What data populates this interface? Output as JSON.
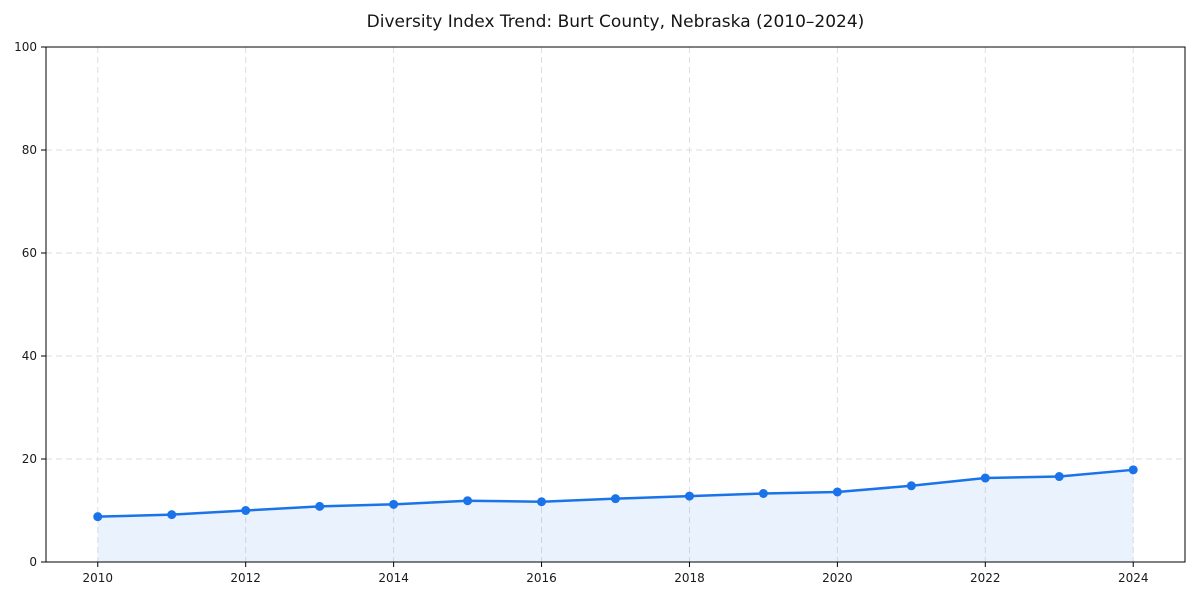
{
  "chart_data": {
    "type": "line",
    "title": "Diversity Index Trend: Burt County, Nebraska (2010–2024)",
    "xlabel": "",
    "ylabel": "",
    "x": [
      2010,
      2011,
      2012,
      2013,
      2014,
      2015,
      2016,
      2017,
      2018,
      2019,
      2020,
      2021,
      2022,
      2023,
      2024
    ],
    "series": [
      {
        "name": "Diversity Index",
        "values": [
          8.8,
          9.2,
          10.0,
          10.8,
          11.2,
          11.9,
          11.7,
          12.3,
          12.8,
          13.3,
          13.6,
          14.8,
          16.3,
          16.6,
          17.9
        ]
      }
    ],
    "xlim": [
      2009.3,
      2024.7
    ],
    "ylim": [
      0,
      100
    ],
    "x_ticks": [
      2010,
      2012,
      2014,
      2016,
      2018,
      2020,
      2022,
      2024
    ],
    "y_ticks": [
      0,
      20,
      40,
      60,
      80,
      100
    ],
    "grid": "dashed",
    "legend_position": "none",
    "line_color": "#1a73e8",
    "fill_opacity": 0.09,
    "grid_color": "#dedede",
    "axis_color": "#000000",
    "tick_label_color": "#1a1a1a",
    "marker": "circle"
  }
}
